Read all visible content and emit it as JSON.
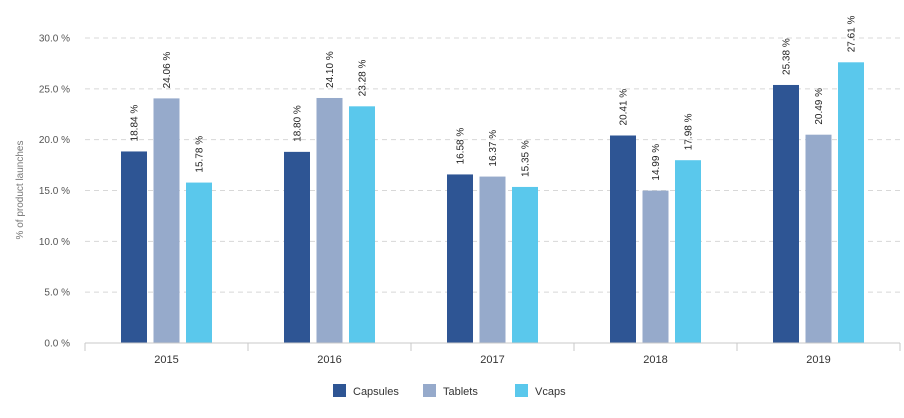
{
  "chart_data": {
    "type": "bar",
    "title": "",
    "xlabel": "",
    "ylabel": "% of product launches",
    "categories": [
      "2015",
      "2016",
      "2017",
      "2018",
      "2019"
    ],
    "series": [
      {
        "name": "Capsules",
        "color": "#2e5594",
        "values": [
          18.84,
          18.8,
          16.58,
          20.41,
          25.38
        ],
        "labels": [
          "18.84 %",
          "18.80 %",
          "16.58 %",
          "20.41 %",
          "25.38 %"
        ]
      },
      {
        "name": "Tablets",
        "color": "#96aacb",
        "values": [
          24.06,
          24.1,
          16.37,
          14.99,
          20.49
        ],
        "labels": [
          "24.06 %",
          "24.10 %",
          "16.37 %",
          "14.99 %",
          "20.49 %"
        ]
      },
      {
        "name": "Vcaps",
        "color": "#5ac8ec",
        "values": [
          15.78,
          23.28,
          15.35,
          17.98,
          27.61
        ],
        "labels": [
          "15.78 %",
          "23.28 %",
          "15.35 %",
          "17.98 %",
          "27.61 %"
        ]
      }
    ],
    "ylim": [
      0,
      30
    ],
    "yticks": [
      0,
      5,
      10,
      15,
      20,
      25,
      30
    ],
    "ytick_labels": [
      "0.0 %",
      "5.0 %",
      "10.0 %",
      "15.0 %",
      "20.0 %",
      "25.0 %",
      "30.0 %"
    ],
    "grid": true,
    "legend_position": "bottom-center"
  }
}
